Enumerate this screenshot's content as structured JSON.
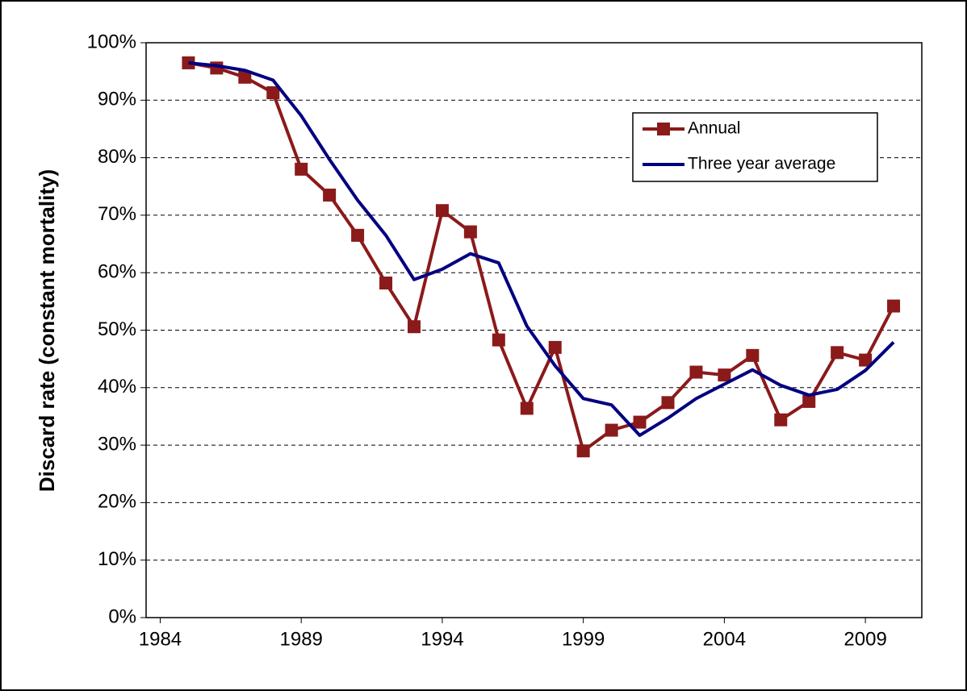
{
  "chart_data": {
    "type": "line",
    "y_label": "Discard rate (constant mortality)",
    "x": [
      1985,
      1986,
      1987,
      1988,
      1989,
      1990,
      1991,
      1992,
      1993,
      1994,
      1995,
      1996,
      1997,
      1998,
      1999,
      2000,
      2001,
      2002,
      2003,
      2004,
      2005,
      2006,
      2007,
      2008,
      2009,
      2010
    ],
    "series": [
      {
        "name": "Annual",
        "color": "#8b1a1a",
        "marker": "square",
        "values": [
          96.5,
          95.6,
          94,
          91.3,
          78,
          73.5,
          66.5,
          58.2,
          50.6,
          70.8,
          67.1,
          48.3,
          36.4,
          47,
          29,
          32.6,
          34,
          37.4,
          42.7,
          42.2,
          45.6,
          34.4,
          37.6,
          46.1,
          44.8,
          54.2
        ]
      },
      {
        "name": "Three year average",
        "color": "#000080",
        "values": [
          96.5,
          96,
          95.2,
          93.5,
          87.3,
          79.7,
          72.6,
          66.5,
          58.8,
          60.6,
          63.3,
          61.7,
          50.7,
          43.8,
          38.1,
          37,
          31.7,
          34.7,
          38.1,
          40.6,
          43.1,
          40.4,
          38.7,
          39.7,
          43,
          47.9
        ]
      }
    ],
    "xlim": [
      1983.5,
      2011
    ],
    "xticks": [
      1984,
      1989,
      1994,
      1999,
      2004,
      2009
    ],
    "ylim": [
      0,
      100
    ],
    "yticks": [
      {
        "value": 0,
        "label": "0%"
      },
      {
        "value": 10,
        "label": "10%"
      },
      {
        "value": 20,
        "label": "20%"
      },
      {
        "value": 30,
        "label": "30%"
      },
      {
        "value": 40,
        "label": "40%"
      },
      {
        "value": 50,
        "label": "50%"
      },
      {
        "value": 60,
        "label": "60%"
      },
      {
        "value": 70,
        "label": "70%"
      },
      {
        "value": 80,
        "label": "80%"
      },
      {
        "value": 90,
        "label": "90%"
      },
      {
        "value": 100,
        "label": "100%"
      }
    ],
    "grid": true,
    "legend": "upper right"
  }
}
